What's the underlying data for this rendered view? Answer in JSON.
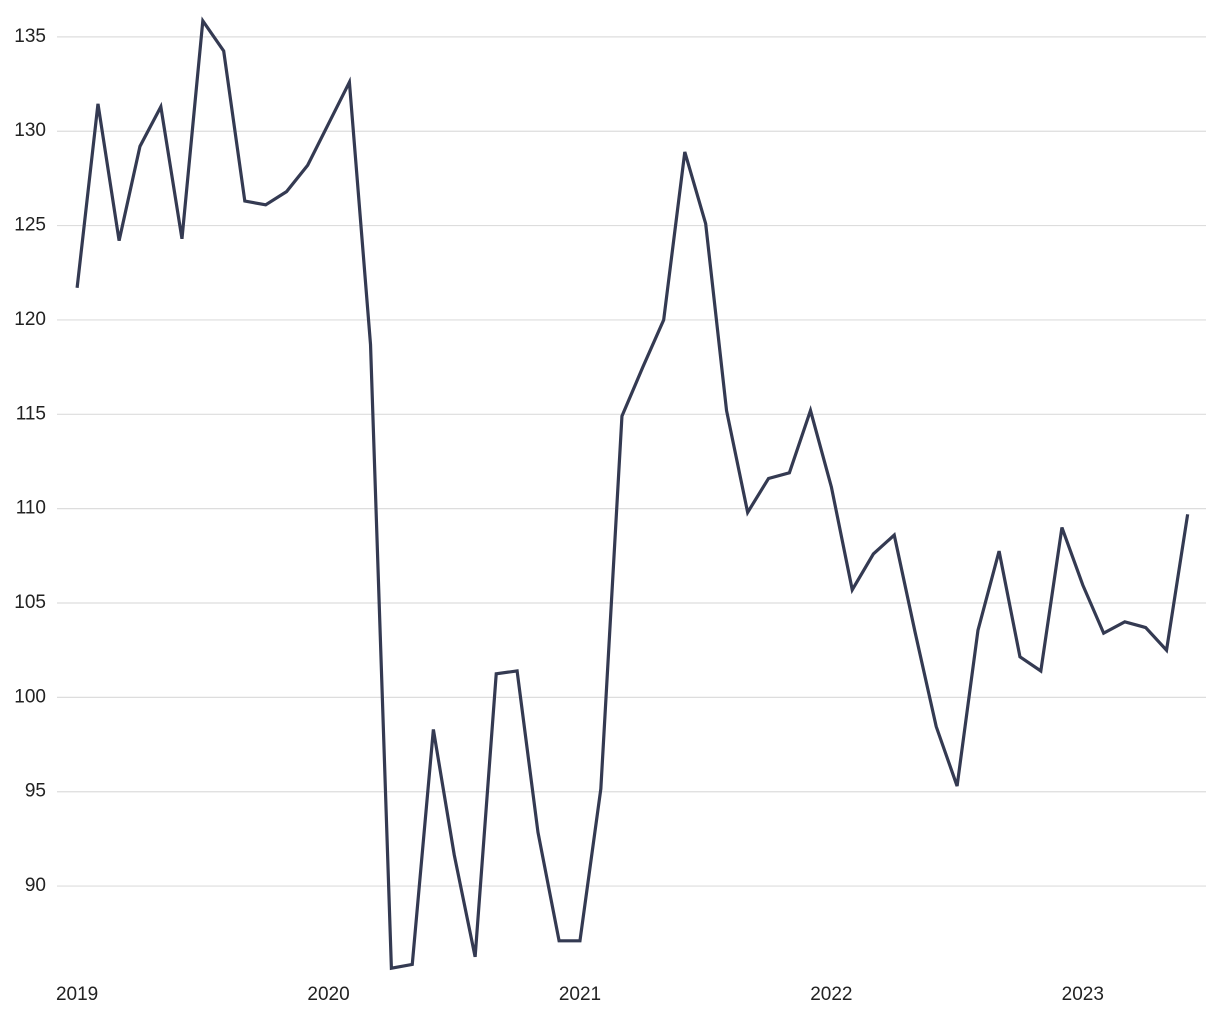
{
  "chart_data": {
    "type": "line",
    "x": [
      2019,
      2019.083,
      2019.167,
      2019.25,
      2019.333,
      2019.417,
      2019.5,
      2019.583,
      2019.667,
      2019.75,
      2019.833,
      2019.917,
      2020,
      2020.083,
      2020.167,
      2020.25,
      2020.333,
      2020.417,
      2020.5,
      2020.583,
      2020.667,
      2020.75,
      2020.833,
      2020.917,
      2021,
      2021.083,
      2021.167,
      2021.25,
      2021.333,
      2021.417,
      2021.5,
      2021.583,
      2021.667,
      2021.75,
      2021.833,
      2021.917,
      2022,
      2022.083,
      2022.167,
      2022.25,
      2022.333,
      2022.417,
      2022.5,
      2022.583,
      2022.667,
      2022.75,
      2022.833,
      2022.917,
      2023,
      2023.083,
      2023.167,
      2023.25,
      2023.333,
      2023.417
    ],
    "series": [
      {
        "color": "#343a52",
        "values": [
          121.7,
          131.45,
          124.2,
          129.2,
          131.3,
          124.3,
          135.85,
          134.25,
          126.3,
          126.1,
          126.8,
          128.2,
          130.4,
          132.6,
          118.7,
          85.65,
          85.85,
          98.3,
          91.65,
          86.25,
          101.25,
          101.4,
          92.85,
          87.1,
          87.1,
          95.15,
          114.9,
          117.5,
          120.0,
          128.9,
          125.1,
          115.2,
          109.8,
          111.6,
          111.9,
          115.2,
          111.15,
          105.7,
          107.6,
          108.6,
          103.45,
          98.45,
          95.3,
          103.55,
          107.75,
          102.15,
          101.4,
          109.0,
          105.95,
          103.4,
          104.0,
          103.7,
          102.5,
          109.7
        ]
      }
    ],
    "xlim": [
      2018.92,
      2023.49
    ],
    "xticks": [
      2019,
      2020,
      2021,
      2022,
      2023
    ],
    "ylim": [
      85.5,
      136
    ],
    "yticks": [
      90,
      95,
      100,
      105,
      110,
      115,
      120,
      125,
      130,
      135
    ],
    "grid": true
  }
}
